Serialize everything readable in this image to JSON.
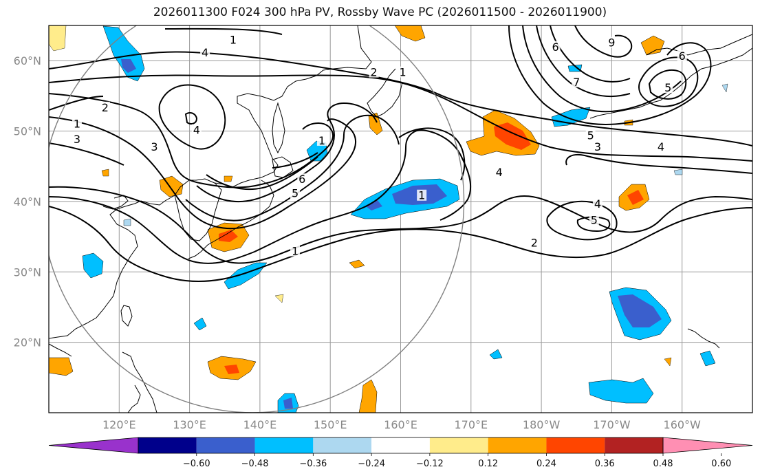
{
  "title": "2026011300 F024 300 hPa PV, Rossby Wave PC (2026011500 - 2026011900)",
  "map": {
    "projection": "equirectangular",
    "lon_range": [
      110,
      210
    ],
    "lat_range": [
      10,
      65
    ],
    "lat_ticks": [
      {
        "value": 30,
        "label": "30°N"
      },
      {
        "value": 40,
        "label": "40°N"
      },
      {
        "value": 50,
        "label": "50°N"
      },
      {
        "value": 60,
        "label": "60°N"
      }
    ],
    "lat_ticks_extra": [
      20
    ],
    "lat_label_20": "20°N",
    "lon_ticks": [
      {
        "value": 120,
        "label": "120°E"
      },
      {
        "value": 130,
        "label": "130°E"
      },
      {
        "value": 140,
        "label": "140°E"
      },
      {
        "value": 150,
        "label": "150°E"
      },
      {
        "value": 160,
        "label": "160°E"
      },
      {
        "value": 170,
        "label": "170°E"
      },
      {
        "value": 180,
        "label": "180°W"
      },
      {
        "value": 190,
        "label": "170°W"
      },
      {
        "value": 200,
        "label": "160°W"
      }
    ],
    "grid": true,
    "range_circle": {
      "center_lon": 139,
      "center_lat": 40,
      "radius_deg": 30
    },
    "pv_contour_labels": [
      {
        "text": "1",
        "lon": 136.2,
        "lat": 62.8
      },
      {
        "text": "4",
        "lon": 132.2,
        "lat": 61.0
      },
      {
        "text": "2",
        "lon": 156.2,
        "lat": 58.2
      },
      {
        "text": "1",
        "lon": 160.3,
        "lat": 58.2
      },
      {
        "text": "2",
        "lon": 118.0,
        "lat": 53.2
      },
      {
        "text": "1",
        "lon": 114.0,
        "lat": 50.9
      },
      {
        "text": "3",
        "lon": 114.0,
        "lat": 48.7
      },
      {
        "text": "4",
        "lon": 131.0,
        "lat": 50.0
      },
      {
        "text": "3",
        "lon": 125.0,
        "lat": 47.6
      },
      {
        "text": "1",
        "lon": 148.8,
        "lat": 48.5
      },
      {
        "text": "6",
        "lon": 146.0,
        "lat": 43.0
      },
      {
        "text": "5",
        "lon": 145.0,
        "lat": 41.0
      },
      {
        "text": "1",
        "lon": 163.0,
        "lat": 40.7
      },
      {
        "text": "1",
        "lon": 145.0,
        "lat": 32.8
      },
      {
        "text": "6",
        "lon": 182.0,
        "lat": 61.8
      },
      {
        "text": "9",
        "lon": 190.0,
        "lat": 62.4
      },
      {
        "text": "7",
        "lon": 185.0,
        "lat": 56.8
      },
      {
        "text": "6",
        "lon": 200.0,
        "lat": 60.5
      },
      {
        "text": "5",
        "lon": 198.0,
        "lat": 56.0
      },
      {
        "text": "5",
        "lon": 187.0,
        "lat": 49.2
      },
      {
        "text": "3",
        "lon": 188.0,
        "lat": 47.6
      },
      {
        "text": "4",
        "lon": 197.0,
        "lat": 47.6
      },
      {
        "text": "4",
        "lon": 174.0,
        "lat": 44.0
      },
      {
        "text": "4",
        "lon": 188.0,
        "lat": 39.5
      },
      {
        "text": "5",
        "lon": 187.5,
        "lat": 37.2
      },
      {
        "text": "2",
        "lon": 179.0,
        "lat": 34.0
      }
    ]
  },
  "colorbar": {
    "ticks": [
      "−0.60",
      "−0.48",
      "−0.36",
      "−0.24",
      "−0.12",
      "0.12",
      "0.24",
      "0.36",
      "0.48",
      "0.60"
    ],
    "colors": [
      "#9932cc",
      "#00008b",
      "#3a5fcd",
      "#00bfff",
      "#add8f0",
      "#ffffff",
      "#ffec8b",
      "#ffa500",
      "#ff4500",
      "#b22222",
      "#ff8fb3"
    ]
  }
}
